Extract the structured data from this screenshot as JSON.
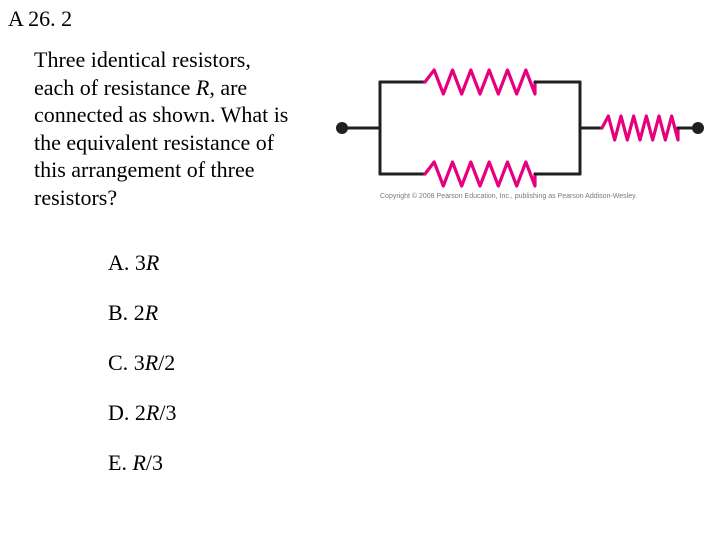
{
  "header": {
    "label": "A 26. 2"
  },
  "question": {
    "lines": [
      "Three identical resistors,",
      "each of resistance ",
      ", are",
      "connected as shown. What is",
      "the equivalent resistance of",
      "this arrangement of three",
      "resistors?"
    ],
    "R": "R"
  },
  "choices": {
    "a": {
      "letter": "A. ",
      "expr_pre": "3",
      "expr_r": "R",
      "expr_post": ""
    },
    "b": {
      "letter": "B. ",
      "expr_pre": "2",
      "expr_r": "R",
      "expr_post": ""
    },
    "c": {
      "letter": "C. ",
      "expr_pre": "3",
      "expr_r": "R",
      "expr_post": "/2"
    },
    "d": {
      "letter": "D. ",
      "expr_pre": "2",
      "expr_r": "R",
      "expr_post": "/3"
    },
    "e": {
      "letter": "E. ",
      "expr_pre": "",
      "expr_r": "R",
      "expr_post": "/3"
    }
  },
  "diagram": {
    "colors": {
      "resistor": "#e6007e",
      "wire": "#231f20",
      "node": "#231f20",
      "background": "#ffffff"
    },
    "stroke": {
      "resistor_width": 3.2,
      "wire_width": 3.0,
      "node_radius": 6
    },
    "zigzag": {
      "peaks": 6,
      "amplitude": 12
    },
    "copyright": "Copyright © 2008 Pearson Education, Inc., publishing as Pearson Addison-Wesley."
  }
}
